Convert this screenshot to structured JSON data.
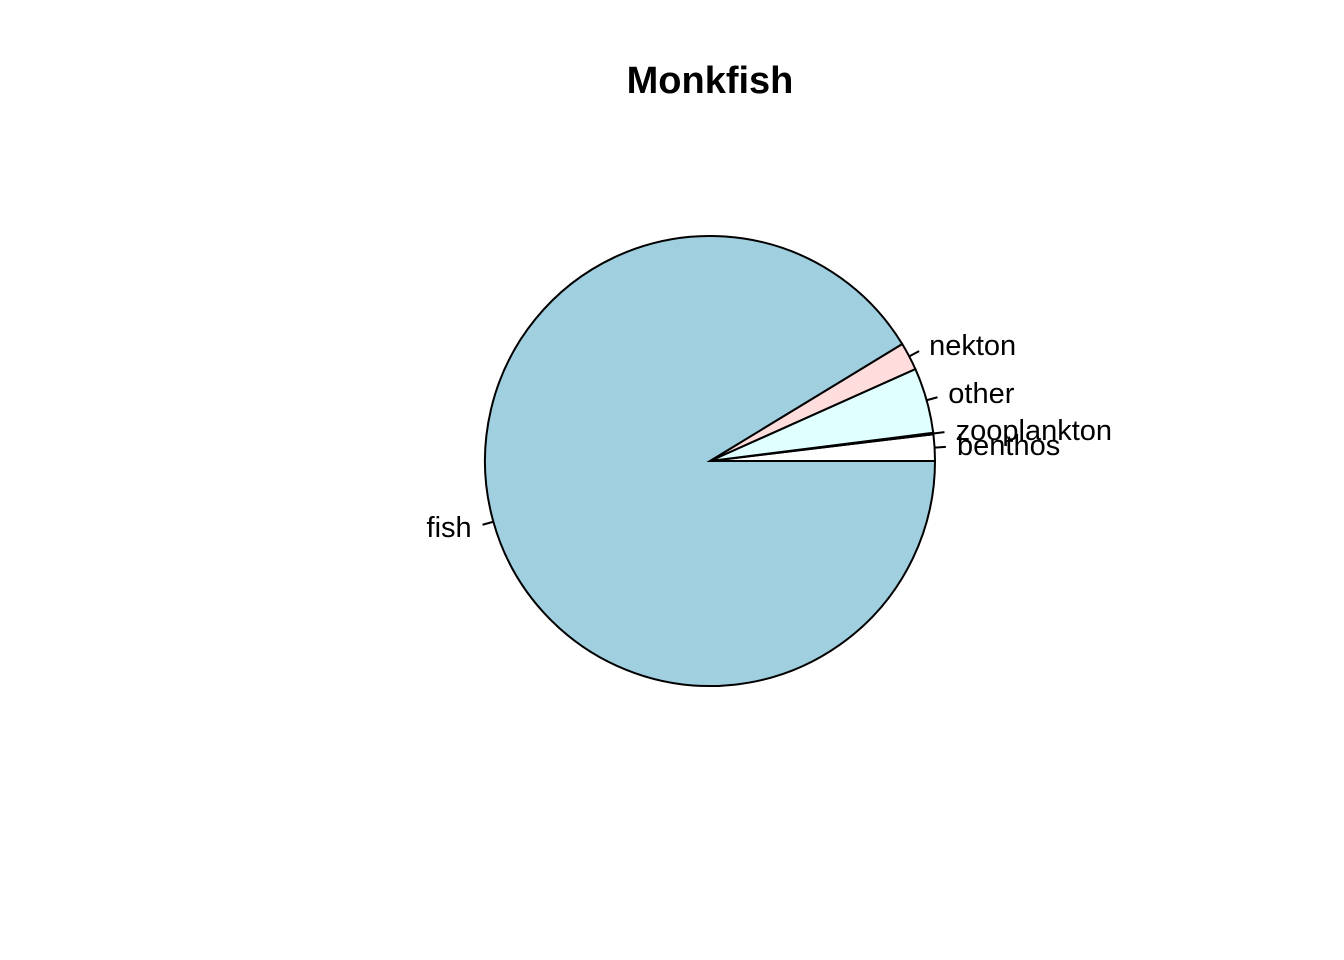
{
  "chart_data": {
    "type": "pie",
    "title": "Monkfish",
    "slices": [
      {
        "label": "benthos",
        "value": 1.9,
        "color": "#FFFFFF"
      },
      {
        "label": "zooplankton",
        "value": 0.1,
        "color": "#F0FFFF"
      },
      {
        "label": "other",
        "value": 4.7,
        "color": "#E0FFFF"
      },
      {
        "label": "nekton",
        "value": 2.0,
        "color": "#FFDDDD"
      },
      {
        "label": "fish",
        "value": 91.3,
        "color": "#A0CFE0"
      }
    ],
    "start_angle_deg": 0,
    "direction": "counterclockwise"
  }
}
